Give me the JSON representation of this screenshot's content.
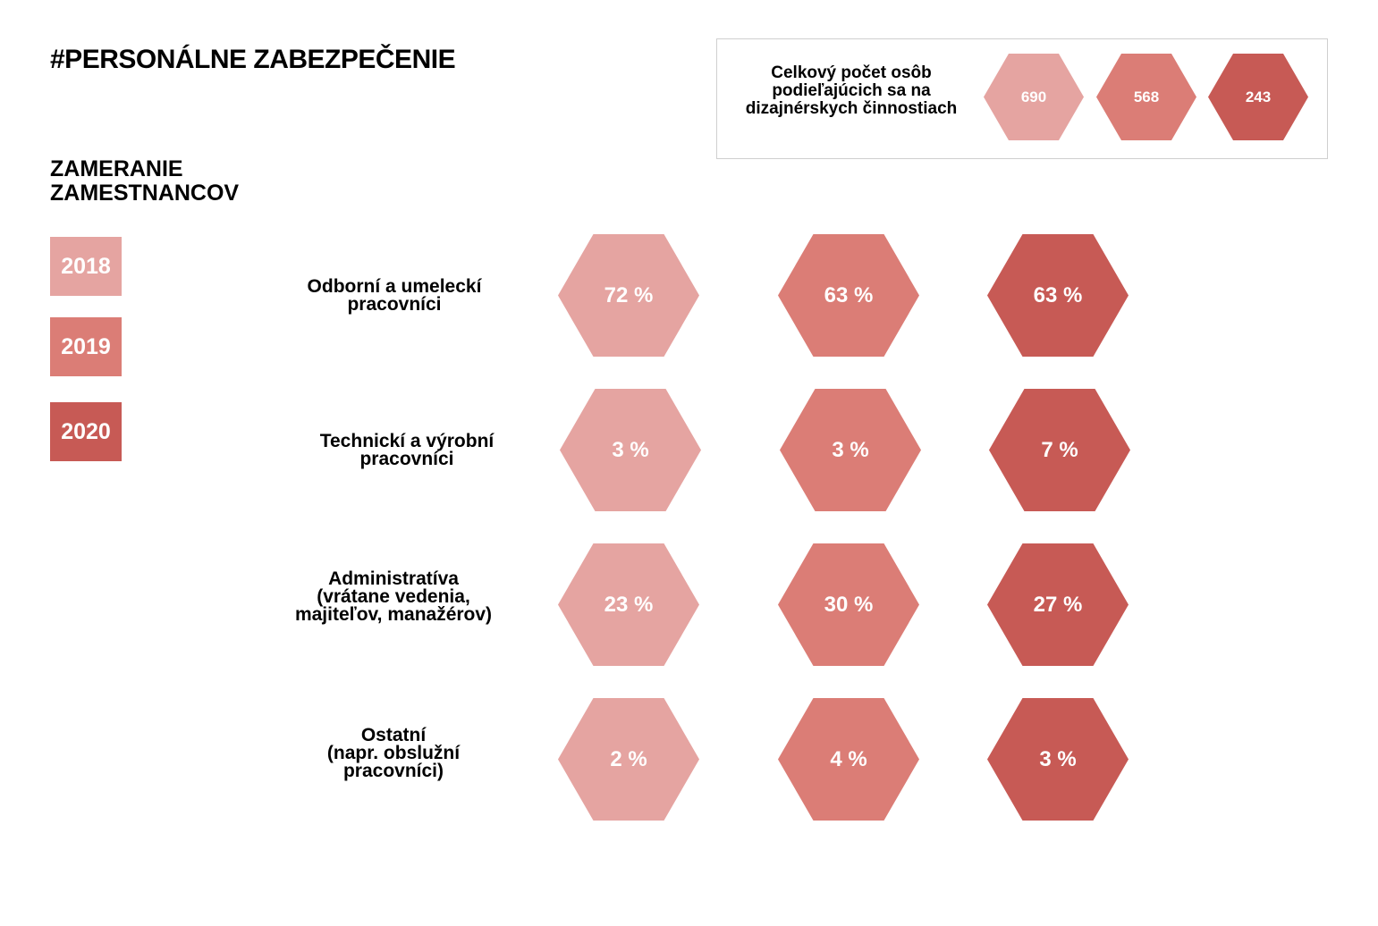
{
  "title": "#PERSONÁLNE ZABEZPEČENIE",
  "subtitle": "ZAMERANIE\nZAMESTNANCOV",
  "colors": {
    "2018": "#e5a4a1",
    "2019": "#db7d76",
    "2020": "#c75a55"
  },
  "legend": [
    "2018",
    "2019",
    "2020"
  ],
  "totals": {
    "label": "Celkový počet osôb podieľajúcich sa na dizajnérskych činnostiach",
    "values": [
      "690",
      "568",
      "243"
    ]
  },
  "chart_data": {
    "type": "table",
    "title": "ZAMERANIE ZAMESTNANCOV",
    "unit": "%",
    "series_names": [
      "2018",
      "2019",
      "2020"
    ],
    "categories": [
      {
        "label": "Odborní a umeleckí\npracovníci",
        "values": [
          "72 %",
          "63 %",
          "63 %"
        ]
      },
      {
        "label": "Technickí a výrobní\npracovníci",
        "values": [
          "3 %",
          "3 %",
          "7 %"
        ]
      },
      {
        "label": "Administratíva\n(vrátane vedenia,\nmajiteľov, manažérov)",
        "values": [
          "23 %",
          "30 %",
          "27 %"
        ]
      },
      {
        "label": "Ostatní\n(napr. obslužní\npracovníci)",
        "values": [
          "2 %",
          "4 %",
          "3 %"
        ]
      }
    ],
    "numeric": {
      "2018": [
        72,
        3,
        23,
        2
      ],
      "2019": [
        63,
        3,
        30,
        4
      ],
      "2020": [
        63,
        7,
        27,
        3
      ]
    }
  }
}
